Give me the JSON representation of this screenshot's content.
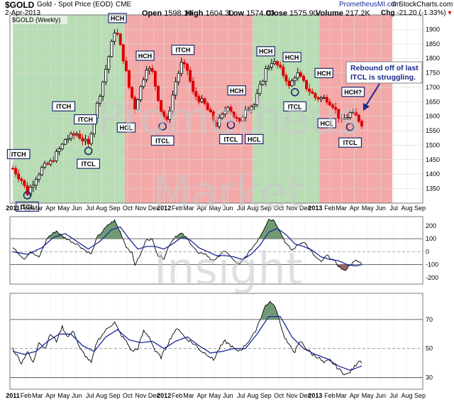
{
  "header": {
    "symbol": "$GOLD",
    "description": "Gold - Spot Price (EOD)",
    "exchange": "CME",
    "date": "2-Apr-2013",
    "open_label": "Open",
    "open": "1598.10",
    "high_label": "High",
    "high": "1604.30",
    "low_label": "Low",
    "low": "1574.00",
    "close_label": "Close",
    "close": "1575.90",
    "volume_label": "Volume",
    "volume": "217.2K",
    "chg_label": "Chg",
    "chg": "-21.20 (-1.33%)",
    "site": "PrometheusMI.com",
    "credit": "© StockCharts.com"
  },
  "colors": {
    "up_bar": "#000000",
    "down_bar": "#dd0000",
    "bull_zone": "#b8dcb4",
    "bear_zone": "#f4a9a9",
    "osc_line": "#1a2a9c",
    "osc_fill_pos": "#5a8a5a",
    "osc_fill_neg": "#8a4a4a",
    "watermark": "#c8c8c8",
    "label_border": "#1a2a6c"
  },
  "watermark": [
    "Prometheus",
    "Market",
    "Insight"
  ],
  "chart_data": [
    {
      "type": "candlestick",
      "legend": "$GOLD (Weekly)",
      "ylim": [
        1300,
        1950
      ],
      "yticks": [
        1350,
        1400,
        1450,
        1500,
        1550,
        1600,
        1650,
        1700,
        1750,
        1800,
        1850,
        1900
      ],
      "zones": [
        {
          "type": "bull",
          "from": 0.0,
          "to": 38.5
        },
        {
          "type": "bear",
          "from": 38.5,
          "to": 82.5
        },
        {
          "type": "bull",
          "from": 82.5,
          "to": 105.5
        },
        {
          "type": "bear",
          "from": 105.5,
          "to": 130.5
        }
      ],
      "x_labels": [
        "2011",
        "Feb",
        "Mar",
        "Apr",
        "May",
        "Jun",
        "Jul",
        "Aug",
        "Sep",
        "Oct",
        "Nov",
        "Dec",
        "2012",
        "Feb",
        "Mar",
        "Apr",
        "May",
        "Jun",
        "Jul",
        "Aug",
        "Sep",
        "Oct",
        "Nov",
        "Dec",
        "2013",
        "Feb",
        "Mar",
        "Apr",
        "May",
        "Jun",
        "Jul",
        "Aug",
        "Sep"
      ],
      "x_label_weeks": [
        0,
        4.5,
        8.5,
        13,
        17.5,
        22,
        26.5,
        30.5,
        35,
        39.5,
        44,
        48.5,
        52,
        56.5,
        60.5,
        65,
        69.5,
        74,
        78.5,
        82.5,
        87,
        91.5,
        96,
        100.5,
        104,
        109,
        113,
        117.5,
        122,
        126.5,
        131,
        135.5,
        140
      ],
      "bold_x_labels": [
        "2011",
        "2012",
        "2013"
      ],
      "anchors": [
        [
          0,
          1420
        ],
        [
          3,
          1380
        ],
        [
          5,
          1335
        ],
        [
          8,
          1390
        ],
        [
          10,
          1420
        ],
        [
          13,
          1440
        ],
        [
          17,
          1500
        ],
        [
          18,
          1520
        ],
        [
          22,
          1540
        ],
        [
          26,
          1500
        ],
        [
          28,
          1600
        ],
        [
          31,
          1720
        ],
        [
          34,
          1850
        ],
        [
          35,
          1895
        ],
        [
          36,
          1880
        ],
        [
          38,
          1800
        ],
        [
          40,
          1700
        ],
        [
          42,
          1630
        ],
        [
          44,
          1700
        ],
        [
          46,
          1770
        ],
        [
          48,
          1750
        ],
        [
          51,
          1620
        ],
        [
          53,
          1580
        ],
        [
          56,
          1720
        ],
        [
          58,
          1780
        ],
        [
          60,
          1760
        ],
        [
          62,
          1680
        ],
        [
          66,
          1640
        ],
        [
          70,
          1570
        ],
        [
          72,
          1600
        ],
        [
          74,
          1640
        ],
        [
          76,
          1600
        ],
        [
          78,
          1575
        ],
        [
          80,
          1630
        ],
        [
          83,
          1640
        ],
        [
          85,
          1700
        ],
        [
          87,
          1760
        ],
        [
          89,
          1790
        ],
        [
          91,
          1775
        ],
        [
          94,
          1730
        ],
        [
          95,
          1700
        ],
        [
          97,
          1740
        ],
        [
          98,
          1745
        ],
        [
          101,
          1700
        ],
        [
          104,
          1665
        ],
        [
          108,
          1660
        ],
        [
          110,
          1640
        ],
        [
          112,
          1600
        ],
        [
          113,
          1580
        ],
        [
          114,
          1590
        ],
        [
          116,
          1610
        ],
        [
          118,
          1600
        ],
        [
          120,
          1576
        ]
      ],
      "annotations": [
        {
          "text": "ITCH",
          "week": 2,
          "price": 1435,
          "dy": -14
        },
        {
          "text": "ITCL",
          "week": 5,
          "price": 1332,
          "dy": 18,
          "circle": true
        },
        {
          "text": "ITCH",
          "week": 17.5,
          "price": 1600,
          "dy": -14
        },
        {
          "text": "ITCH",
          "week": 25,
          "price": 1555,
          "dy": -14
        },
        {
          "text": "ITCL",
          "week": 26,
          "price": 1485,
          "dy": 20,
          "circle": true
        },
        {
          "text": "HCH",
          "week": 36,
          "price": 1900,
          "dy": -16
        },
        {
          "text": "HCL",
          "week": 39,
          "price": 1620,
          "dy": 24
        },
        {
          "text": "HCH",
          "week": 45.5,
          "price": 1770,
          "dy": -16
        },
        {
          "text": "ITCL",
          "week": 51.5,
          "price": 1570,
          "dy": 22,
          "circle": true
        },
        {
          "text": "ITCH",
          "week": 58.5,
          "price": 1790,
          "dy": -16
        },
        {
          "text": "HCH",
          "week": 77,
          "price": 1655,
          "dy": -14
        },
        {
          "text": "ITCL",
          "week": 75,
          "price": 1575,
          "dy": 22,
          "circle": true
        },
        {
          "text": "HCL",
          "week": 83,
          "price": 1575,
          "dy": 22
        },
        {
          "text": "HCH",
          "week": 87,
          "price": 1790,
          "dy": -14
        },
        {
          "text": "HCH",
          "week": 96,
          "price": 1770,
          "dy": -14
        },
        {
          "text": "ITCL",
          "week": 97,
          "price": 1688,
          "dy": 22,
          "circle": true
        },
        {
          "text": "HCH",
          "week": 107,
          "price": 1715,
          "dy": -14
        },
        {
          "text": "HCL",
          "week": 108,
          "price": 1630,
          "dy": 22
        },
        {
          "text": "HCH?",
          "week": 117,
          "price": 1650,
          "dy": -14
        },
        {
          "text": "ITCL",
          "week": 116,
          "price": 1568,
          "dy": 24,
          "circle": true
        }
      ],
      "callout": {
        "lines": [
          "Rebound off of last",
          "ITCL is struggling."
        ]
      }
    },
    {
      "type": "line",
      "name": "oscillator-1",
      "ylim": [
        -250,
        270
      ],
      "yticks": [
        200,
        100,
        0,
        -100,
        -200
      ],
      "reference_lines": [
        100,
        0,
        -100
      ],
      "fast_anchors": [
        [
          0,
          30
        ],
        [
          4,
          -55
        ],
        [
          6,
          0
        ],
        [
          9,
          -45
        ],
        [
          12,
          110
        ],
        [
          15,
          160
        ],
        [
          17,
          120
        ],
        [
          20,
          80
        ],
        [
          22,
          60
        ],
        [
          25,
          10
        ],
        [
          27,
          -20
        ],
        [
          29,
          110
        ],
        [
          31,
          160
        ],
        [
          33,
          210
        ],
        [
          35,
          240
        ],
        [
          37,
          150
        ],
        [
          39,
          40
        ],
        [
          41,
          -10
        ],
        [
          42,
          -100
        ],
        [
          44,
          -20
        ],
        [
          46,
          100
        ],
        [
          48,
          90
        ],
        [
          50,
          -30
        ],
        [
          52,
          -50
        ],
        [
          54,
          60
        ],
        [
          56,
          120
        ],
        [
          58,
          140
        ],
        [
          60,
          100
        ],
        [
          62,
          40
        ],
        [
          64,
          -20
        ],
        [
          66,
          -10
        ],
        [
          68,
          -60
        ],
        [
          70,
          -60
        ],
        [
          72,
          0
        ],
        [
          74,
          -10
        ],
        [
          76,
          -70
        ],
        [
          78,
          -100
        ],
        [
          80,
          -40
        ],
        [
          82,
          20
        ],
        [
          84,
          80
        ],
        [
          86,
          160
        ],
        [
          88,
          250
        ],
        [
          90,
          240
        ],
        [
          92,
          150
        ],
        [
          94,
          60
        ],
        [
          96,
          10
        ],
        [
          98,
          50
        ],
        [
          100,
          80
        ],
        [
          102,
          20
        ],
        [
          104,
          -40
        ],
        [
          106,
          -80
        ],
        [
          108,
          -30
        ],
        [
          110,
          -60
        ],
        [
          112,
          -110
        ],
        [
          114,
          -150
        ],
        [
          116,
          -100
        ],
        [
          118,
          -70
        ],
        [
          120,
          -90
        ]
      ],
      "slow_anchors": [
        [
          0,
          0
        ],
        [
          5,
          -20
        ],
        [
          10,
          30
        ],
        [
          14,
          110
        ],
        [
          18,
          140
        ],
        [
          22,
          80
        ],
        [
          26,
          20
        ],
        [
          30,
          80
        ],
        [
          34,
          170
        ],
        [
          37,
          190
        ],
        [
          40,
          100
        ],
        [
          43,
          20
        ],
        [
          46,
          40
        ],
        [
          49,
          40
        ],
        [
          52,
          20
        ],
        [
          55,
          60
        ],
        [
          58,
          110
        ],
        [
          61,
          90
        ],
        [
          64,
          30
        ],
        [
          67,
          0
        ],
        [
          70,
          -30
        ],
        [
          73,
          -30
        ],
        [
          76,
          -40
        ],
        [
          79,
          -60
        ],
        [
          82,
          -20
        ],
        [
          85,
          50
        ],
        [
          88,
          150
        ],
        [
          91,
          180
        ],
        [
          94,
          130
        ],
        [
          97,
          60
        ],
        [
          100,
          40
        ],
        [
          103,
          10
        ],
        [
          106,
          -40
        ],
        [
          109,
          -60
        ],
        [
          112,
          -70
        ],
        [
          115,
          -100
        ],
        [
          118,
          -110
        ],
        [
          120,
          -100
        ]
      ]
    },
    {
      "type": "line",
      "name": "oscillator-2",
      "ylim": [
        22,
        88
      ],
      "yticks": [
        70,
        50,
        30
      ],
      "reference_lines": [
        70,
        50,
        30
      ],
      "fast_anchors": [
        [
          0,
          50
        ],
        [
          3,
          40
        ],
        [
          5,
          48
        ],
        [
          7,
          40
        ],
        [
          9,
          55
        ],
        [
          11,
          50
        ],
        [
          13,
          60
        ],
        [
          15,
          55
        ],
        [
          17,
          65
        ],
        [
          19,
          58
        ],
        [
          21,
          62
        ],
        [
          23,
          50
        ],
        [
          25,
          45
        ],
        [
          27,
          40
        ],
        [
          29,
          55
        ],
        [
          31,
          60
        ],
        [
          33,
          65
        ],
        [
          35,
          68
        ],
        [
          37,
          60
        ],
        [
          39,
          55
        ],
        [
          41,
          48
        ],
        [
          43,
          50
        ],
        [
          45,
          62
        ],
        [
          47,
          58
        ],
        [
          49,
          48
        ],
        [
          51,
          44
        ],
        [
          53,
          52
        ],
        [
          55,
          60
        ],
        [
          57,
          64
        ],
        [
          59,
          58
        ],
        [
          61,
          55
        ],
        [
          63,
          52
        ],
        [
          65,
          48
        ],
        [
          67,
          46
        ],
        [
          69,
          42
        ],
        [
          71,
          50
        ],
        [
          73,
          55
        ],
        [
          75,
          52
        ],
        [
          77,
          48
        ],
        [
          79,
          50
        ],
        [
          81,
          55
        ],
        [
          83,
          60
        ],
        [
          85,
          70
        ],
        [
          87,
          80
        ],
        [
          89,
          82
        ],
        [
          91,
          75
        ],
        [
          93,
          60
        ],
        [
          95,
          52
        ],
        [
          97,
          48
        ],
        [
          99,
          55
        ],
        [
          101,
          50
        ],
        [
          103,
          46
        ],
        [
          105,
          44
        ],
        [
          107,
          40
        ],
        [
          109,
          42
        ],
        [
          111,
          38
        ],
        [
          113,
          34
        ],
        [
          115,
          32
        ],
        [
          117,
          36
        ],
        [
          119,
          42
        ],
        [
          120,
          41
        ]
      ],
      "slow_anchors": [
        [
          0,
          48
        ],
        [
          4,
          46
        ],
        [
          8,
          48
        ],
        [
          12,
          55
        ],
        [
          16,
          60
        ],
        [
          20,
          60
        ],
        [
          24,
          52
        ],
        [
          28,
          48
        ],
        [
          32,
          58
        ],
        [
          36,
          63
        ],
        [
          40,
          56
        ],
        [
          44,
          54
        ],
        [
          48,
          55
        ],
        [
          52,
          50
        ],
        [
          56,
          55
        ],
        [
          60,
          58
        ],
        [
          64,
          52
        ],
        [
          68,
          47
        ],
        [
          72,
          48
        ],
        [
          76,
          50
        ],
        [
          80,
          50
        ],
        [
          84,
          60
        ],
        [
          88,
          72
        ],
        [
          92,
          72
        ],
        [
          96,
          58
        ],
        [
          100,
          50
        ],
        [
          104,
          46
        ],
        [
          108,
          43
        ],
        [
          112,
          38
        ],
        [
          116,
          35
        ],
        [
          120,
          38
        ]
      ]
    }
  ]
}
